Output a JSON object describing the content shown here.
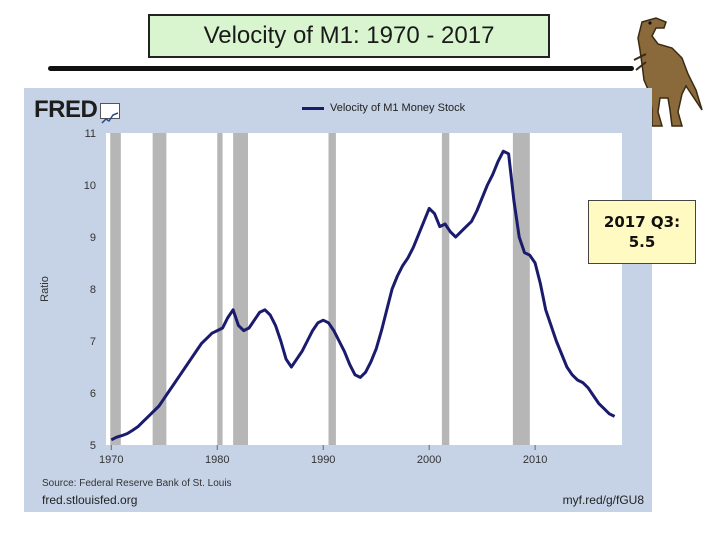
{
  "slide": {
    "title": "Velocity of M1:  1970 - 2017",
    "callout": "2017 Q3:\n5.5"
  },
  "fred": {
    "logo": "FRED",
    "source": "Source: Federal Reserve Bank of St. Louis",
    "url_left": "fred.stlouisfed.org",
    "url_right": "myf.red/g/fGU8"
  },
  "colors": {
    "line": "#1b1b6e",
    "recession": "#b6b6b6",
    "panel": "#c6d3e6",
    "title_bg": "#d8f5cf",
    "callout_bg": "#fff9c2"
  },
  "icons": [
    "dinosaur-icon",
    "fred-chart-icon"
  ],
  "chart_data": {
    "type": "line",
    "title": "",
    "xlabel": "",
    "ylabel": "Ratio",
    "xlim": [
      1969.5,
      2018.2
    ],
    "ylim": [
      5,
      11
    ],
    "x_ticks": [
      1970,
      1980,
      1990,
      2000,
      2010
    ],
    "y_ticks": [
      5,
      6,
      7,
      8,
      9,
      10,
      11
    ],
    "grid": false,
    "legend": "top-center",
    "recessions": [
      [
        1969.9,
        1970.9
      ],
      [
        1973.9,
        1975.2
      ],
      [
        1980.0,
        1980.5
      ],
      [
        1981.5,
        1982.9
      ],
      [
        1990.5,
        1991.2
      ],
      [
        2001.2,
        2001.9
      ],
      [
        2007.9,
        2009.5
      ]
    ],
    "series": [
      {
        "name": "Velocity of M1 Money Stock",
        "x": [
          1970.0,
          1970.5,
          1971.0,
          1971.5,
          1972.0,
          1972.5,
          1973.0,
          1973.5,
          1974.0,
          1974.5,
          1975.0,
          1975.5,
          1976.0,
          1976.5,
          1977.0,
          1977.5,
          1978.0,
          1978.5,
          1979.0,
          1979.5,
          1980.0,
          1980.5,
          1981.0,
          1981.5,
          1982.0,
          1982.5,
          1983.0,
          1983.5,
          1984.0,
          1984.5,
          1985.0,
          1985.5,
          1986.0,
          1986.5,
          1987.0,
          1987.5,
          1988.0,
          1988.5,
          1989.0,
          1989.5,
          1990.0,
          1990.5,
          1991.0,
          1991.5,
          1992.0,
          1992.5,
          1993.0,
          1993.5,
          1994.0,
          1994.5,
          1995.0,
          1995.5,
          1996.0,
          1996.5,
          1997.0,
          1997.5,
          1998.0,
          1998.5,
          1999.0,
          1999.5,
          2000.0,
          2000.5,
          2001.0,
          2001.5,
          2002.0,
          2002.5,
          2003.0,
          2003.5,
          2004.0,
          2004.5,
          2005.0,
          2005.5,
          2006.0,
          2006.5,
          2007.0,
          2007.5,
          2008.0,
          2008.5,
          2009.0,
          2009.5,
          2010.0,
          2010.5,
          2011.0,
          2011.5,
          2012.0,
          2012.5,
          2013.0,
          2013.5,
          2014.0,
          2014.5,
          2015.0,
          2015.5,
          2016.0,
          2016.5,
          2017.0,
          2017.5
        ],
        "values": [
          5.1,
          5.15,
          5.18,
          5.22,
          5.28,
          5.35,
          5.45,
          5.55,
          5.65,
          5.75,
          5.9,
          6.05,
          6.2,
          6.35,
          6.5,
          6.65,
          6.8,
          6.95,
          7.05,
          7.15,
          7.2,
          7.25,
          7.45,
          7.6,
          7.3,
          7.2,
          7.25,
          7.4,
          7.55,
          7.6,
          7.5,
          7.3,
          7.0,
          6.65,
          6.5,
          6.65,
          6.8,
          7.0,
          7.2,
          7.35,
          7.4,
          7.35,
          7.2,
          7.0,
          6.8,
          6.55,
          6.35,
          6.3,
          6.4,
          6.6,
          6.85,
          7.2,
          7.6,
          8.0,
          8.25,
          8.45,
          8.6,
          8.8,
          9.05,
          9.3,
          9.55,
          9.45,
          9.2,
          9.25,
          9.1,
          9.0,
          9.1,
          9.2,
          9.3,
          9.5,
          9.75,
          10.0,
          10.2,
          10.45,
          10.65,
          10.6,
          9.7,
          9.0,
          8.7,
          8.65,
          8.5,
          8.1,
          7.6,
          7.3,
          7.0,
          6.75,
          6.5,
          6.35,
          6.25,
          6.2,
          6.1,
          5.95,
          5.8,
          5.7,
          5.6,
          5.55
        ]
      }
    ]
  }
}
